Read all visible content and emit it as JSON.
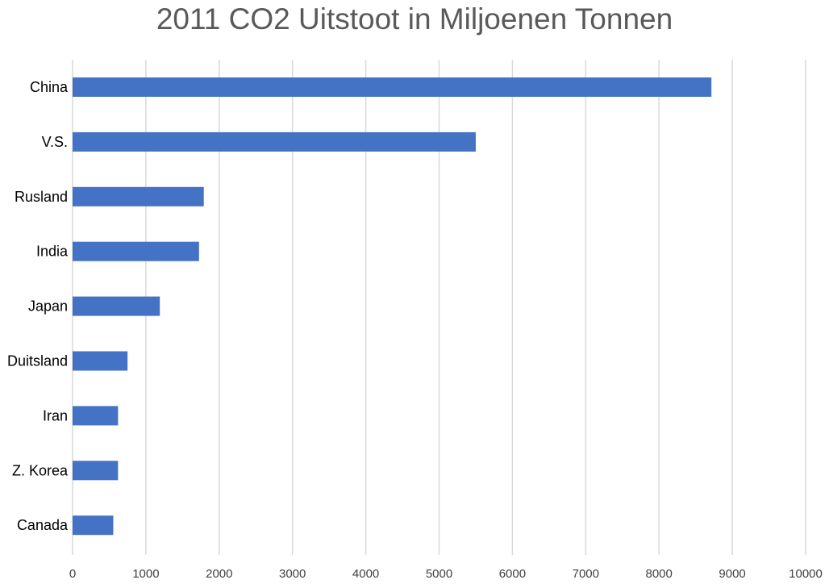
{
  "chart_data": {
    "type": "bar",
    "orientation": "horizontal",
    "title": "2011 CO2 Uitstoot in Miljoenen Tonnen",
    "categories": [
      "China",
      "V.S.",
      "Rusland",
      "India",
      "Japan",
      "Duitsland",
      "Iran",
      "Z. Korea",
      "Canada"
    ],
    "values": [
      8715,
      5500,
      1790,
      1725,
      1190,
      750,
      620,
      620,
      555
    ],
    "xlim": [
      0,
      10000
    ],
    "xticks": [
      0,
      1000,
      2000,
      3000,
      4000,
      5000,
      6000,
      7000,
      8000,
      9000,
      10000
    ],
    "xlabel": "",
    "ylabel": "",
    "grid": "vertical",
    "legend": "none",
    "colors": {
      "bar": "#4472C4",
      "grid": "#D9D9D9",
      "title": "#595959",
      "tick_label": "#404040"
    }
  }
}
